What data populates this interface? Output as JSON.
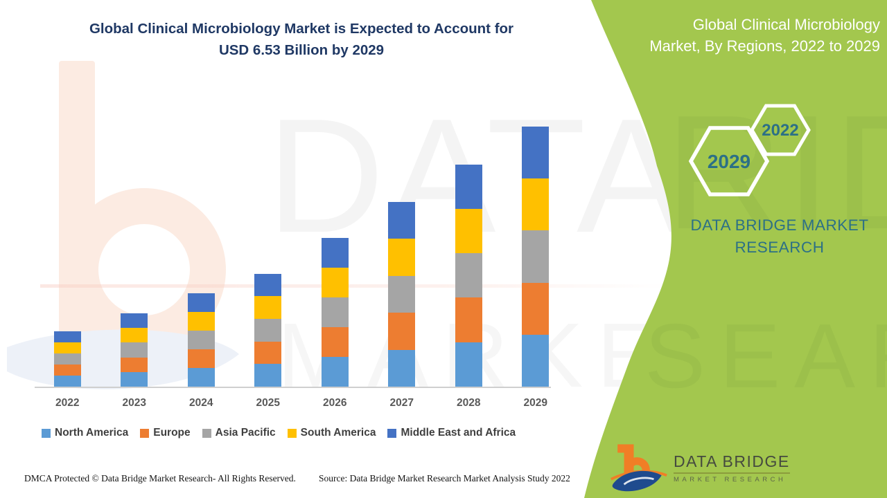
{
  "header": {
    "title_line1": "Global Clinical Microbiology Market is Expected to Account for",
    "title_line2": "USD 6.53 Billion by 2029"
  },
  "side_panel": {
    "panel_color": "#A3C74E",
    "text_color": "#2C7086",
    "title_line1": "Global Clinical Microbiology",
    "title_line2": "Market, By Regions, 2022 to 2029",
    "hexagons": [
      {
        "label": "2029"
      },
      {
        "label": "2022"
      }
    ],
    "brand_line1": "DATA BRIDGE MARKET",
    "brand_line2": "RESEARCH"
  },
  "chart_data": {
    "type": "bar",
    "stacked": true,
    "title": "Global Clinical Microbiology Market, By Regions, 2022 to 2029",
    "unit": "USD Billion",
    "categories": [
      "2022",
      "2023",
      "2024",
      "2025",
      "2026",
      "2027",
      "2028",
      "2029"
    ],
    "series": [
      {
        "name": "North America",
        "color": "#5B9BD5",
        "values": [
          0.28,
          0.37,
          0.47,
          0.57,
          0.75,
          0.93,
          1.12,
          1.31
        ]
      },
      {
        "name": "Europe",
        "color": "#ED7D31",
        "values": [
          0.28,
          0.37,
          0.47,
          0.57,
          0.75,
          0.93,
          1.12,
          1.31
        ]
      },
      {
        "name": "Asia Pacific",
        "color": "#A5A5A5",
        "values": [
          0.28,
          0.37,
          0.47,
          0.57,
          0.75,
          0.93,
          1.12,
          1.31
        ]
      },
      {
        "name": "South America",
        "color": "#FFC000",
        "values": [
          0.28,
          0.37,
          0.47,
          0.57,
          0.75,
          0.93,
          1.12,
          1.31
        ]
      },
      {
        "name": "Middle East and Africa",
        "color": "#4472C4",
        "values": [
          0.28,
          0.37,
          0.47,
          0.57,
          0.75,
          0.93,
          1.12,
          1.31
        ]
      }
    ],
    "estimated_totals": [
      1.39,
      1.86,
      2.34,
      2.83,
      3.73,
      4.64,
      5.58,
      6.53
    ],
    "ylim": [
      0,
      7
    ],
    "grid": false,
    "y_axis_visible": false,
    "legend_position": "bottom"
  },
  "watermark": {
    "line1": "DATA BRIDGE",
    "line2": "MARKET RESEARCH"
  },
  "footer": {
    "dmca": "DMCA Protected © Data Bridge Market Research- All Rights Reserved.",
    "source": "Source: Data Bridge Market Research Market Analysis Study 2022"
  },
  "logo": {
    "name": "DATA BRIDGE",
    "subtitle": "MARKET RESEARCH"
  }
}
